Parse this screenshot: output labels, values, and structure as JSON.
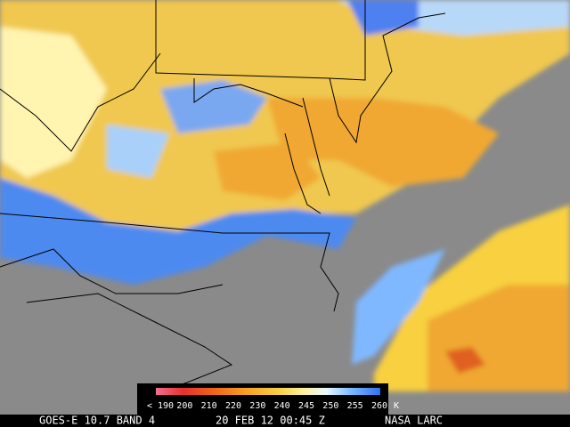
{
  "colorbar": {
    "labels": [
      "< 190",
      "200",
      "210",
      "220",
      "230",
      "240",
      "245",
      "250",
      "255",
      "260"
    ],
    "unit": "K"
  },
  "footer": {
    "product": "GOES-E 10.7 BAND 4",
    "datetime": "20 FEB 12 00:45 Z",
    "source": "NASA LARC"
  }
}
